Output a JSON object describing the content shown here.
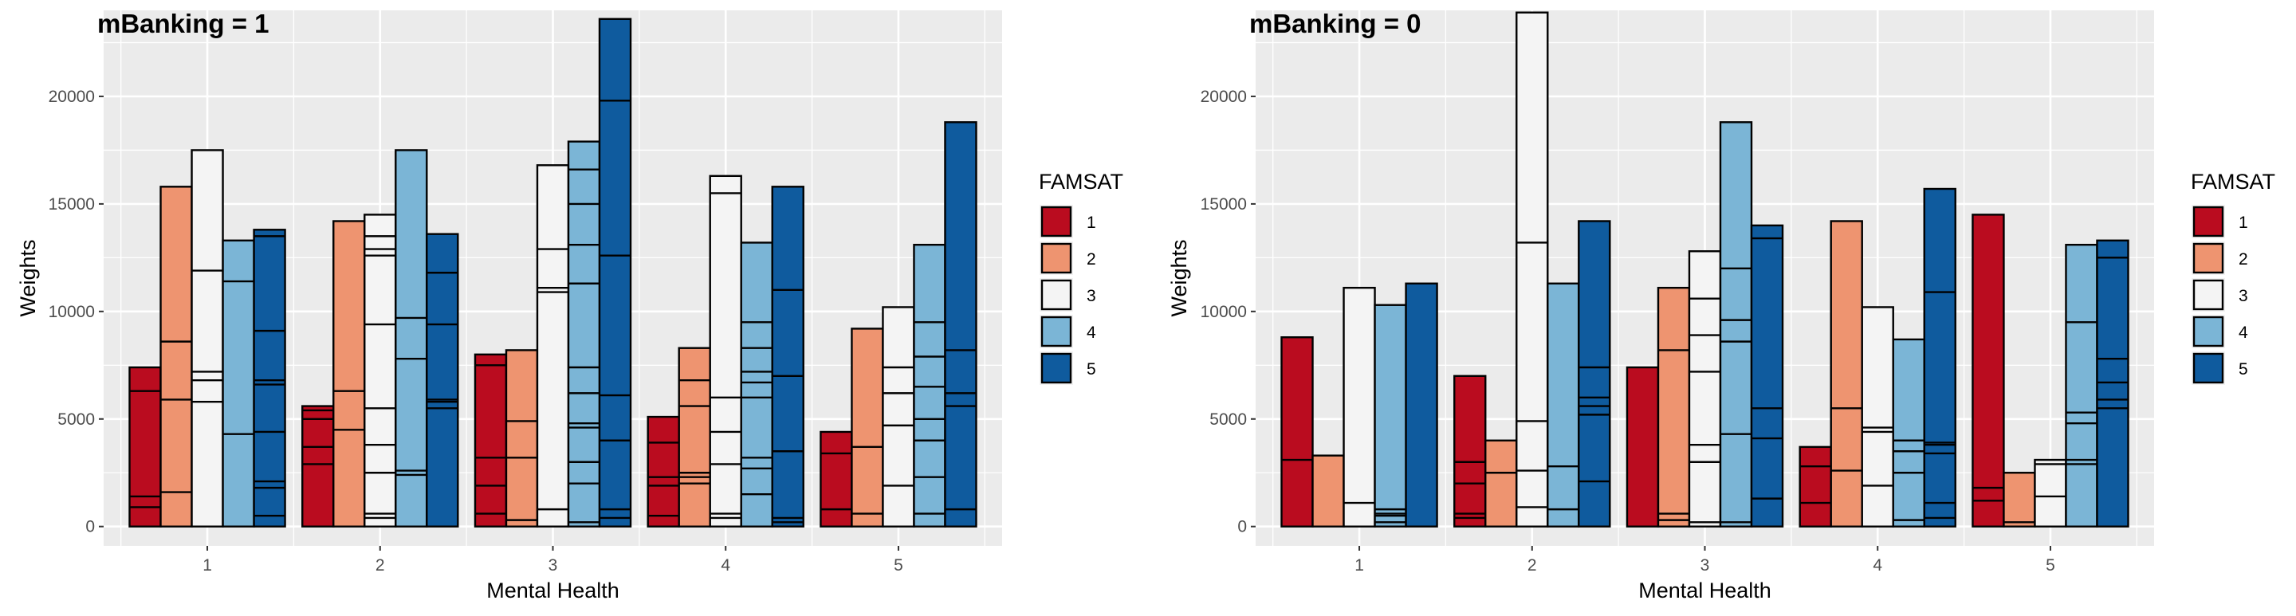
{
  "colors": {
    "panel_bg": "#EBEBEB",
    "grid": "#FFFFFF",
    "outline": "#000000",
    "famsat": {
      "1": "#B2182B",
      "2": "#EF8A62",
      "3": "#F7F7F7",
      "4": "#67A9CF",
      "5": "#2166AC"
    },
    "famsat_plot": {
      "1": "#BA0C1F",
      "2": "#EE9470",
      "3": "#F4F4F4",
      "4": "#7BB5D6",
      "5": "#0F5B9E"
    }
  },
  "legend": {
    "title": "FAMSAT",
    "items": [
      {
        "label": "1",
        "key": "1"
      },
      {
        "label": "2",
        "key": "2"
      },
      {
        "label": "3",
        "key": "3"
      },
      {
        "label": "4",
        "key": "4"
      },
      {
        "label": "5",
        "key": "5"
      }
    ]
  },
  "chart_data": [
    {
      "type": "bar",
      "title": "mBanking = 1",
      "xlabel": "Mental Health",
      "ylabel": "Weights",
      "ylim": [
        -900,
        24000
      ],
      "yticks": [
        0,
        5000,
        10000,
        15000,
        20000
      ],
      "ytick_labels": [
        "0",
        "5000",
        "10000",
        "15000",
        "20000"
      ],
      "categories": [
        "1",
        "2",
        "3",
        "4",
        "5"
      ],
      "series": [
        {
          "name": "1",
          "values": [
            7400,
            5600,
            8000,
            5100,
            4400
          ],
          "segments": [
            [
              900,
              1400,
              6300
            ],
            [
              2900,
              3700,
              5000,
              5400
            ],
            [
              600,
              1900,
              3200,
              7500
            ],
            [
              500,
              1900,
              2300,
              3900
            ],
            [
              800,
              3400
            ]
          ]
        },
        {
          "name": "2",
          "values": [
            15800,
            14200,
            8200,
            8300,
            9200
          ],
          "segments": [
            [
              1600,
              5900,
              8600
            ],
            [
              4500,
              6300
            ],
            [
              300,
              3200,
              4900
            ],
            [
              2000,
              2300,
              2500,
              5600,
              6800
            ],
            [
              600,
              3700
            ]
          ]
        },
        {
          "name": "3",
          "values": [
            17500,
            14500,
            16800,
            16300,
            10200
          ],
          "segments": [
            [
              5800,
              6800,
              7200,
              11900
            ],
            [
              400,
              600,
              2500,
              3800,
              5500,
              9400,
              12600,
              12900,
              13500
            ],
            [
              800,
              10900,
              11100,
              12900
            ],
            [
              400,
              600,
              2900,
              4400,
              6000,
              15500
            ],
            [
              1900,
              4700,
              6200,
              7400
            ]
          ]
        },
        {
          "name": "4",
          "values": [
            13300,
            17500,
            17900,
            13200,
            13100
          ],
          "segments": [
            [
              4300,
              11400
            ],
            [
              2400,
              2600,
              7800,
              9700
            ],
            [
              200,
              2000,
              3000,
              4600,
              4800,
              6200,
              7400,
              11300,
              13100,
              15000,
              16600
            ],
            [
              1500,
              2700,
              3200,
              6000,
              6700,
              7200,
              8300,
              9500
            ],
            [
              600,
              2300,
              4000,
              5000,
              6500,
              7900,
              9500
            ]
          ]
        },
        {
          "name": "5",
          "values": [
            13800,
            13600,
            23600,
            15800,
            18800
          ],
          "segments": [
            [
              500,
              1800,
              2100,
              4400,
              6600,
              6800,
              9100,
              13500
            ],
            [
              5500,
              5800,
              5900,
              9400,
              11800
            ],
            [
              400,
              800,
              4000,
              6100,
              12600,
              19800
            ],
            [
              200,
              400,
              3500,
              7000,
              11000
            ],
            [
              800,
              5600,
              6200,
              8200
            ]
          ]
        }
      ]
    },
    {
      "type": "bar",
      "title": "mBanking = 0",
      "xlabel": "Mental Health",
      "ylabel": "Weights",
      "ylim": [
        -900,
        24000
      ],
      "yticks": [
        0,
        5000,
        10000,
        15000,
        20000
      ],
      "ytick_labels": [
        "0",
        "5000",
        "10000",
        "15000",
        "20000"
      ],
      "categories": [
        "1",
        "2",
        "3",
        "4",
        "5"
      ],
      "series": [
        {
          "name": "1",
          "values": [
            8800,
            7000,
            7400,
            3700,
            14500
          ],
          "segments": [
            [
              3100
            ],
            [
              400,
              600,
              2000,
              3000
            ],
            [],
            [
              1100,
              2800
            ],
            [
              1200,
              1800
            ]
          ]
        },
        {
          "name": "2",
          "values": [
            3300,
            4000,
            11100,
            14200,
            2500
          ],
          "segments": [
            [],
            [
              2500
            ],
            [
              300,
              600,
              8200
            ],
            [
              2600,
              5500
            ],
            [
              200
            ]
          ]
        },
        {
          "name": "3",
          "values": [
            11100,
            23900,
            12800,
            10200,
            3100
          ],
          "segments": [
            [
              1100
            ],
            [
              900,
              2600,
              4900,
              13200
            ],
            [
              200,
              3000,
              3800,
              7200,
              8900,
              10600
            ],
            [
              1900,
              4400,
              4600
            ],
            [
              1400,
              2900
            ]
          ]
        },
        {
          "name": "4",
          "values": [
            10300,
            11300,
            18800,
            8700,
            13100
          ],
          "segments": [
            [
              200,
              500,
              600,
              800
            ],
            [
              800,
              2800
            ],
            [
              200,
              4300,
              8600,
              9600,
              12000
            ],
            [
              300,
              2500,
              3500,
              4000
            ],
            [
              2900,
              3100,
              4800,
              5300,
              9500
            ]
          ]
        },
        {
          "name": "5",
          "values": [
            11300,
            14200,
            14000,
            15700,
            13300
          ],
          "segments": [
            [],
            [
              2100,
              5200,
              5600,
              6000,
              7400
            ],
            [
              1300,
              4100,
              5500,
              13400
            ],
            [
              400,
              1100,
              3400,
              3800,
              3900,
              10900
            ],
            [
              5500,
              5900,
              6700,
              7800,
              12500
            ]
          ]
        }
      ]
    }
  ]
}
